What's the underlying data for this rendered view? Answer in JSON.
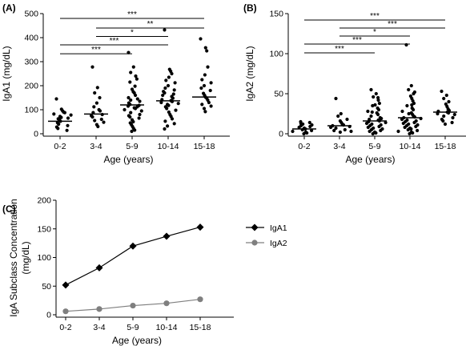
{
  "chart_data": [
    {
      "panel": "(A)",
      "type": "scatter",
      "categories": [
        "0-2",
        "3-4",
        "5-9",
        "10-14",
        "15-18"
      ],
      "xlabel": "Age (years)",
      "ylabel": "IgA1 (mg/dL)",
      "ylim": [
        0,
        500
      ],
      "yticks": [
        "0",
        "100",
        "200",
        "300",
        "400",
        "500"
      ],
      "medians": [
        52,
        82,
        120,
        137,
        153
      ],
      "points": [
        [
          145,
          102,
          95,
          90,
          88,
          82,
          78,
          72,
          68,
          62,
          58,
          52,
          46,
          40,
          34,
          28,
          22,
          14,
          65
        ],
        [
          278,
          192,
          170,
          150,
          128,
          112,
          100,
          95,
          88,
          80,
          75,
          70,
          60,
          55,
          48,
          38,
          30
        ],
        [
          338,
          278,
          255,
          240,
          228,
          215,
          198,
          185,
          175,
          170,
          160,
          150,
          145,
          140,
          135,
          128,
          122,
          118,
          115,
          112,
          108,
          105,
          100,
          95,
          88,
          80,
          75,
          70,
          65,
          58,
          50,
          45,
          38,
          30,
          22,
          15,
          10
        ],
        [
          432,
          268,
          260,
          250,
          235,
          222,
          212,
          200,
          190,
          182,
          176,
          170,
          165,
          160,
          155,
          148,
          142,
          138,
          134,
          130,
          126,
          122,
          118,
          112,
          105,
          98,
          90,
          80,
          72,
          62,
          52,
          42,
          32,
          20
        ],
        [
          395,
          358,
          345,
          278,
          245,
          225,
          212,
          200,
          190,
          180,
          168,
          160,
          152,
          148,
          140,
          130,
          122,
          115,
          105,
          92
        ]
      ],
      "significance": [
        {
          "from": "0-2",
          "to": "15-18",
          "label": "***",
          "y": 480
        },
        {
          "from": "3-4",
          "to": "15-18",
          "label": "**",
          "y": 440
        },
        {
          "from": "3-4",
          "to": "10-14",
          "label": "*",
          "y": 405
        },
        {
          "from": "0-2",
          "to": "10-14",
          "label": "***",
          "y": 370
        },
        {
          "from": "0-2",
          "to": "5-9",
          "label": "***",
          "y": 333
        }
      ]
    },
    {
      "panel": "(B)",
      "type": "scatter",
      "categories": [
        "0-2",
        "3-4",
        "5-9",
        "10-14",
        "15-18"
      ],
      "xlabel": "Age (years)",
      "ylabel": "IgA2 (mg/dL)",
      "ylim": [
        0,
        150
      ],
      "yticks": [
        "0",
        "50",
        "100",
        "150"
      ],
      "medians": [
        6,
        10,
        16,
        20,
        27
      ],
      "points": [
        [
          15,
          14,
          12,
          11,
          10,
          9,
          8,
          7,
          6,
          5,
          4,
          3,
          2,
          1,
          0,
          13
        ],
        [
          44,
          25,
          22,
          18,
          16,
          14,
          12,
          11,
          10,
          9,
          8,
          7,
          5,
          4,
          3,
          2
        ],
        [
          55,
          50,
          46,
          42,
          38,
          35,
          32,
          30,
          28,
          26,
          24,
          22,
          20,
          18,
          17,
          16,
          15,
          14,
          13,
          12,
          11,
          10,
          9,
          8,
          7,
          6,
          5,
          4,
          3,
          2,
          1,
          0,
          45,
          36,
          27,
          19
        ],
        [
          111,
          60,
          55,
          50,
          47,
          44,
          41,
          38,
          35,
          32,
          30,
          28,
          26,
          24,
          22,
          21,
          20,
          19,
          18,
          17,
          16,
          15,
          14,
          13,
          12,
          11,
          10,
          9,
          8,
          7,
          6,
          5,
          4,
          3,
          2,
          1,
          0,
          52,
          36,
          25
        ],
        [
          53,
          48,
          44,
          40,
          37,
          34,
          31,
          29,
          28,
          27,
          26,
          25,
          24,
          22,
          20,
          18,
          16,
          14,
          12
        ]
      ],
      "significance": [
        {
          "from": "0-2",
          "to": "15-18",
          "label": "***",
          "y": 142
        },
        {
          "from": "3-4",
          "to": "15-18",
          "label": "***",
          "y": 132
        },
        {
          "from": "3-4",
          "to": "10-14",
          "label": "*",
          "y": 122
        },
        {
          "from": "0-2",
          "to": "10-14",
          "label": "***",
          "y": 112
        },
        {
          "from": "0-2",
          "to": "5-9",
          "label": "***",
          "y": 101
        }
      ]
    },
    {
      "panel": "(C)",
      "type": "line",
      "categories": [
        "0-2",
        "3-4",
        "5-9",
        "10-14",
        "15-18"
      ],
      "xlabel": "Age (years)",
      "ylabel_lines": [
        "IgA Subclass Concentration",
        "(mg/dL)"
      ],
      "ylim": [
        0,
        200
      ],
      "yticks": [
        "0",
        "50",
        "100",
        "150",
        "200"
      ],
      "series": [
        {
          "name": "IgA1",
          "marker": "diamond",
          "color": "#000000",
          "values": [
            52,
            82,
            120,
            137,
            153
          ]
        },
        {
          "name": "IgA2",
          "marker": "circle",
          "color": "#7f7f7f",
          "values": [
            6,
            10,
            16,
            20,
            27
          ]
        }
      ]
    }
  ]
}
